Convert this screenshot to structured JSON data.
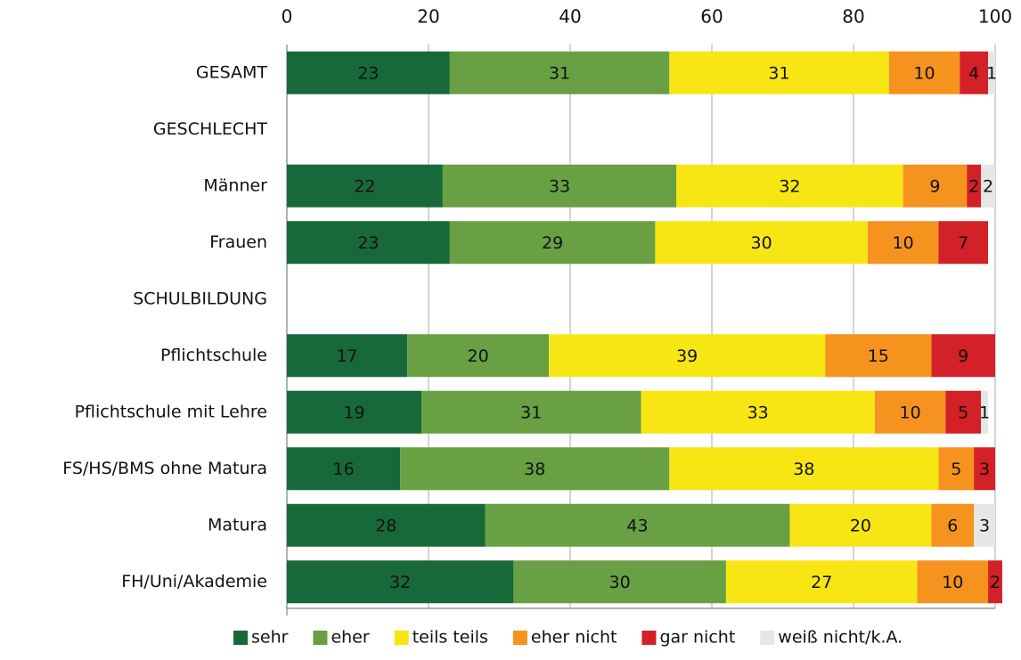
{
  "chart_data": {
    "type": "stacked_barh",
    "categories": [
      "GESAMT",
      "GESCHLECHT",
      "Männer",
      "Frauen",
      "SCHULBILDUNG",
      "Pflichtschule",
      "Pflichtschule mit Lehre",
      "FS/HS/BMS ohne Matura",
      "Matura",
      "FH/Uni/Akademie"
    ],
    "series": [
      {
        "name": "sehr",
        "color": "#17693a",
        "label_color": "#ffffff",
        "values": [
          23,
          null,
          22,
          23,
          null,
          17,
          19,
          16,
          28,
          32
        ]
      },
      {
        "name": "eher",
        "color": "#68a043",
        "label_color": "#ffffff",
        "values": [
          31,
          null,
          33,
          29,
          null,
          20,
          31,
          38,
          43,
          30
        ]
      },
      {
        "name": "teils teils",
        "color": "#f7e614",
        "label_color": "#111111",
        "values": [
          31,
          null,
          32,
          30,
          null,
          39,
          33,
          38,
          20,
          27
        ]
      },
      {
        "name": "eher nicht",
        "color": "#f6931e",
        "label_color": "#111111",
        "values": [
          10,
          null,
          9,
          10,
          null,
          15,
          10,
          5,
          6,
          10
        ]
      },
      {
        "name": "gar nicht",
        "color": "#d42027",
        "label_color": "#111111",
        "values": [
          4,
          null,
          2,
          7,
          null,
          9,
          5,
          3,
          null,
          2
        ]
      },
      {
        "name": "weiß nicht/k.A.",
        "color": "#e6e6e6",
        "label_color": "#111111",
        "values": [
          1,
          null,
          2,
          null,
          null,
          null,
          1,
          null,
          3,
          null
        ]
      }
    ],
    "xlim": [
      0,
      100
    ],
    "xticks": [
      0,
      20,
      40,
      60,
      80,
      100
    ],
    "grid": true,
    "legend": "bottom"
  }
}
